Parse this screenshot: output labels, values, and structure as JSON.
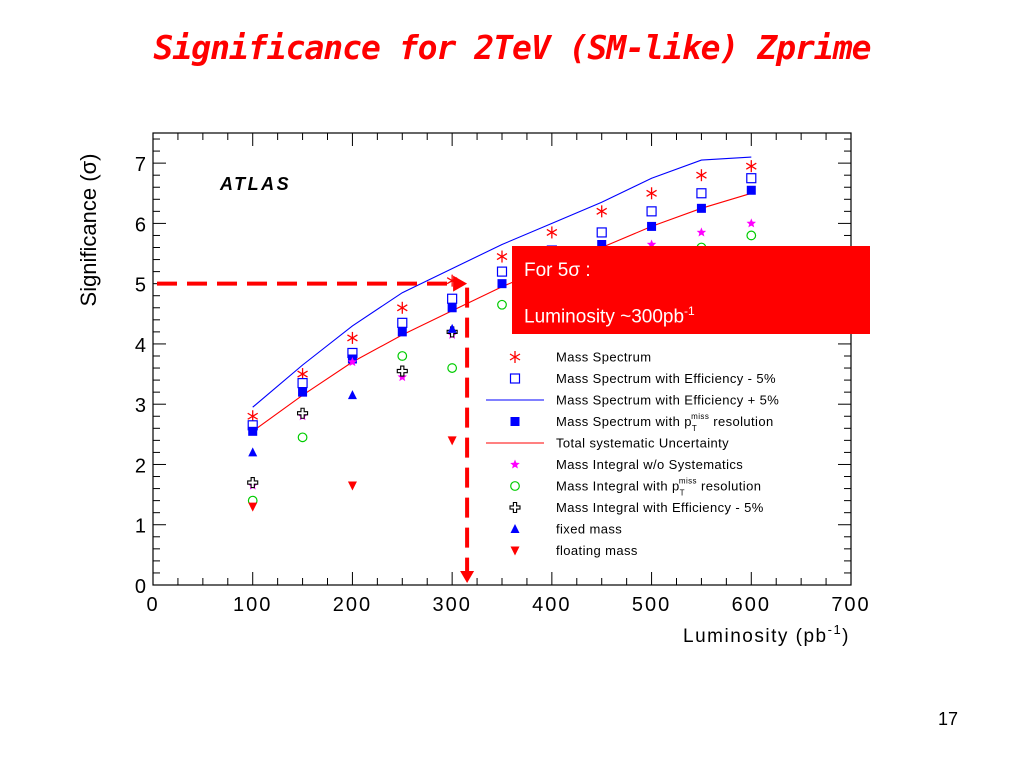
{
  "slide": {
    "title": "Significance for 2TeV (SM-like) Zprime",
    "page_number": "17"
  },
  "callout": {
    "line1": "For 5σ :",
    "line2_main": "Luminosity ~300pb",
    "line2_sup": "-1"
  },
  "colors": {
    "red": "#ff0000",
    "blue": "#0000ff",
    "green": "#00cc00",
    "magenta": "#ff00ff",
    "dark": "#000000",
    "title": "#ff0000"
  },
  "chart_data": {
    "type": "scatter",
    "watermark_label": "ATLAS",
    "xlabel_main": "Luminosity (pb",
    "xlabel_sup": "-1",
    "xlabel_end": ")",
    "ylabel": "Significance  (σ)",
    "xlim": [
      0,
      700
    ],
    "ylim": [
      0,
      7.5
    ],
    "x_ticks": [
      "0",
      "100",
      "200",
      "300",
      "400",
      "500",
      "600",
      "700"
    ],
    "y_ticks": [
      "0",
      "1",
      "2",
      "3",
      "4",
      "5",
      "6",
      "7"
    ],
    "grid": false,
    "legend_position": "bottom-right",
    "annotation": {
      "target_significance": 5,
      "target_luminosity": 315
    },
    "series": [
      {
        "name": "Mass Spectrum",
        "marker": "star6",
        "color": "#ff0000",
        "x": [
          100,
          150,
          200,
          250,
          300,
          350,
          400,
          450,
          500,
          550,
          600
        ],
        "y": [
          2.8,
          3.5,
          4.1,
          4.6,
          5.05,
          5.45,
          5.85,
          6.2,
          6.5,
          6.8,
          6.95
        ]
      },
      {
        "name": "Mass Spectrum with Efficiency - 5%",
        "marker": "open-square",
        "color": "#0000ff",
        "x": [
          100,
          150,
          200,
          250,
          300,
          350,
          400,
          450,
          500,
          550,
          600
        ],
        "y": [
          2.65,
          3.35,
          3.85,
          4.35,
          4.75,
          5.2,
          5.55,
          5.85,
          6.2,
          6.5,
          6.75
        ]
      },
      {
        "name": "Mass Spectrum with Efficiency + 5%",
        "marker": "line",
        "color": "#0000ff",
        "x": [
          100,
          150,
          200,
          250,
          300,
          350,
          400,
          450,
          500,
          550,
          600
        ],
        "y": [
          2.95,
          3.65,
          4.3,
          4.85,
          5.25,
          5.65,
          6.0,
          6.35,
          6.75,
          7.05,
          7.1
        ]
      },
      {
        "name_main": "Mass Spectrum with p",
        "name_sub": "T",
        "name_sup": "miss",
        "name_end": " resolution",
        "marker": "filled-square",
        "color": "#0000ff",
        "x": [
          100,
          150,
          200,
          250,
          300,
          350,
          400,
          450,
          500,
          550,
          600
        ],
        "y": [
          2.55,
          3.2,
          3.75,
          4.2,
          4.6,
          5.0,
          5.35,
          5.65,
          5.95,
          6.25,
          6.55
        ]
      },
      {
        "name": "Total systematic Uncertainty",
        "marker": "line",
        "color": "#ff0000",
        "x": [
          100,
          150,
          200,
          250,
          300,
          350,
          400,
          450,
          500,
          550,
          600
        ],
        "y": [
          2.55,
          3.15,
          3.7,
          4.15,
          4.55,
          4.95,
          5.3,
          5.6,
          5.95,
          6.25,
          6.5
        ]
      },
      {
        "name": "Mass Integral w/o Systematics",
        "marker": "filled-star",
        "color": "#ff00ff",
        "x": [
          100,
          150,
          200,
          250,
          300,
          350,
          400,
          450,
          500,
          550,
          600
        ],
        "y": [
          1.65,
          2.8,
          3.7,
          3.45,
          4.15,
          4.65,
          5.05,
          5.35,
          5.65,
          5.85,
          6.0
        ]
      },
      {
        "name_main": "Mass Integral with p",
        "name_sub": "T",
        "name_sup": "miss",
        "name_end": " resolution",
        "marker": "open-circle",
        "color": "#00cc00",
        "x": [
          100,
          150,
          250,
          300,
          350,
          400,
          450,
          500,
          550,
          600
        ],
        "y": [
          1.4,
          2.45,
          3.8,
          3.6,
          4.65,
          4.95,
          5.25,
          5.45,
          5.6,
          5.8
        ]
      },
      {
        "name": "Mass Integral with Efficiency - 5%",
        "marker": "open-cross",
        "color": "#000000",
        "x": [
          100,
          150,
          250,
          300
        ],
        "y": [
          1.7,
          2.85,
          3.55,
          4.2
        ]
      },
      {
        "name": "fixed mass",
        "marker": "triangle-up",
        "color": "#0000ff",
        "x": [
          100,
          200,
          300
        ],
        "y": [
          2.2,
          3.15,
          4.25
        ]
      },
      {
        "name": "floating mass",
        "marker": "triangle-down",
        "color": "#ff0000",
        "x": [
          100,
          200,
          300
        ],
        "y": [
          1.3,
          1.65,
          2.4
        ]
      }
    ]
  }
}
